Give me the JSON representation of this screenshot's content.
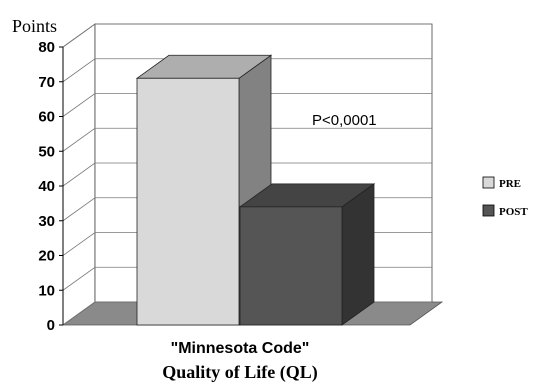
{
  "chart_data": {
    "type": "bar",
    "title": "",
    "ylabel": "Points",
    "xlabel": "Quality of Life (QL)",
    "categories": [
      "\"Minnesota Code\""
    ],
    "series": [
      {
        "name": "PRE",
        "values": [
          71
        ],
        "color": "#d9d9d9"
      },
      {
        "name": "POST",
        "values": [
          34
        ],
        "color": "#555555"
      }
    ],
    "ylim": [
      0,
      80
    ],
    "yticks": [
      0,
      10,
      20,
      30,
      40,
      50,
      60,
      70,
      80
    ],
    "annotation": "P<0,0001",
    "grid": true,
    "legend_position": "right",
    "style": "3d"
  }
}
